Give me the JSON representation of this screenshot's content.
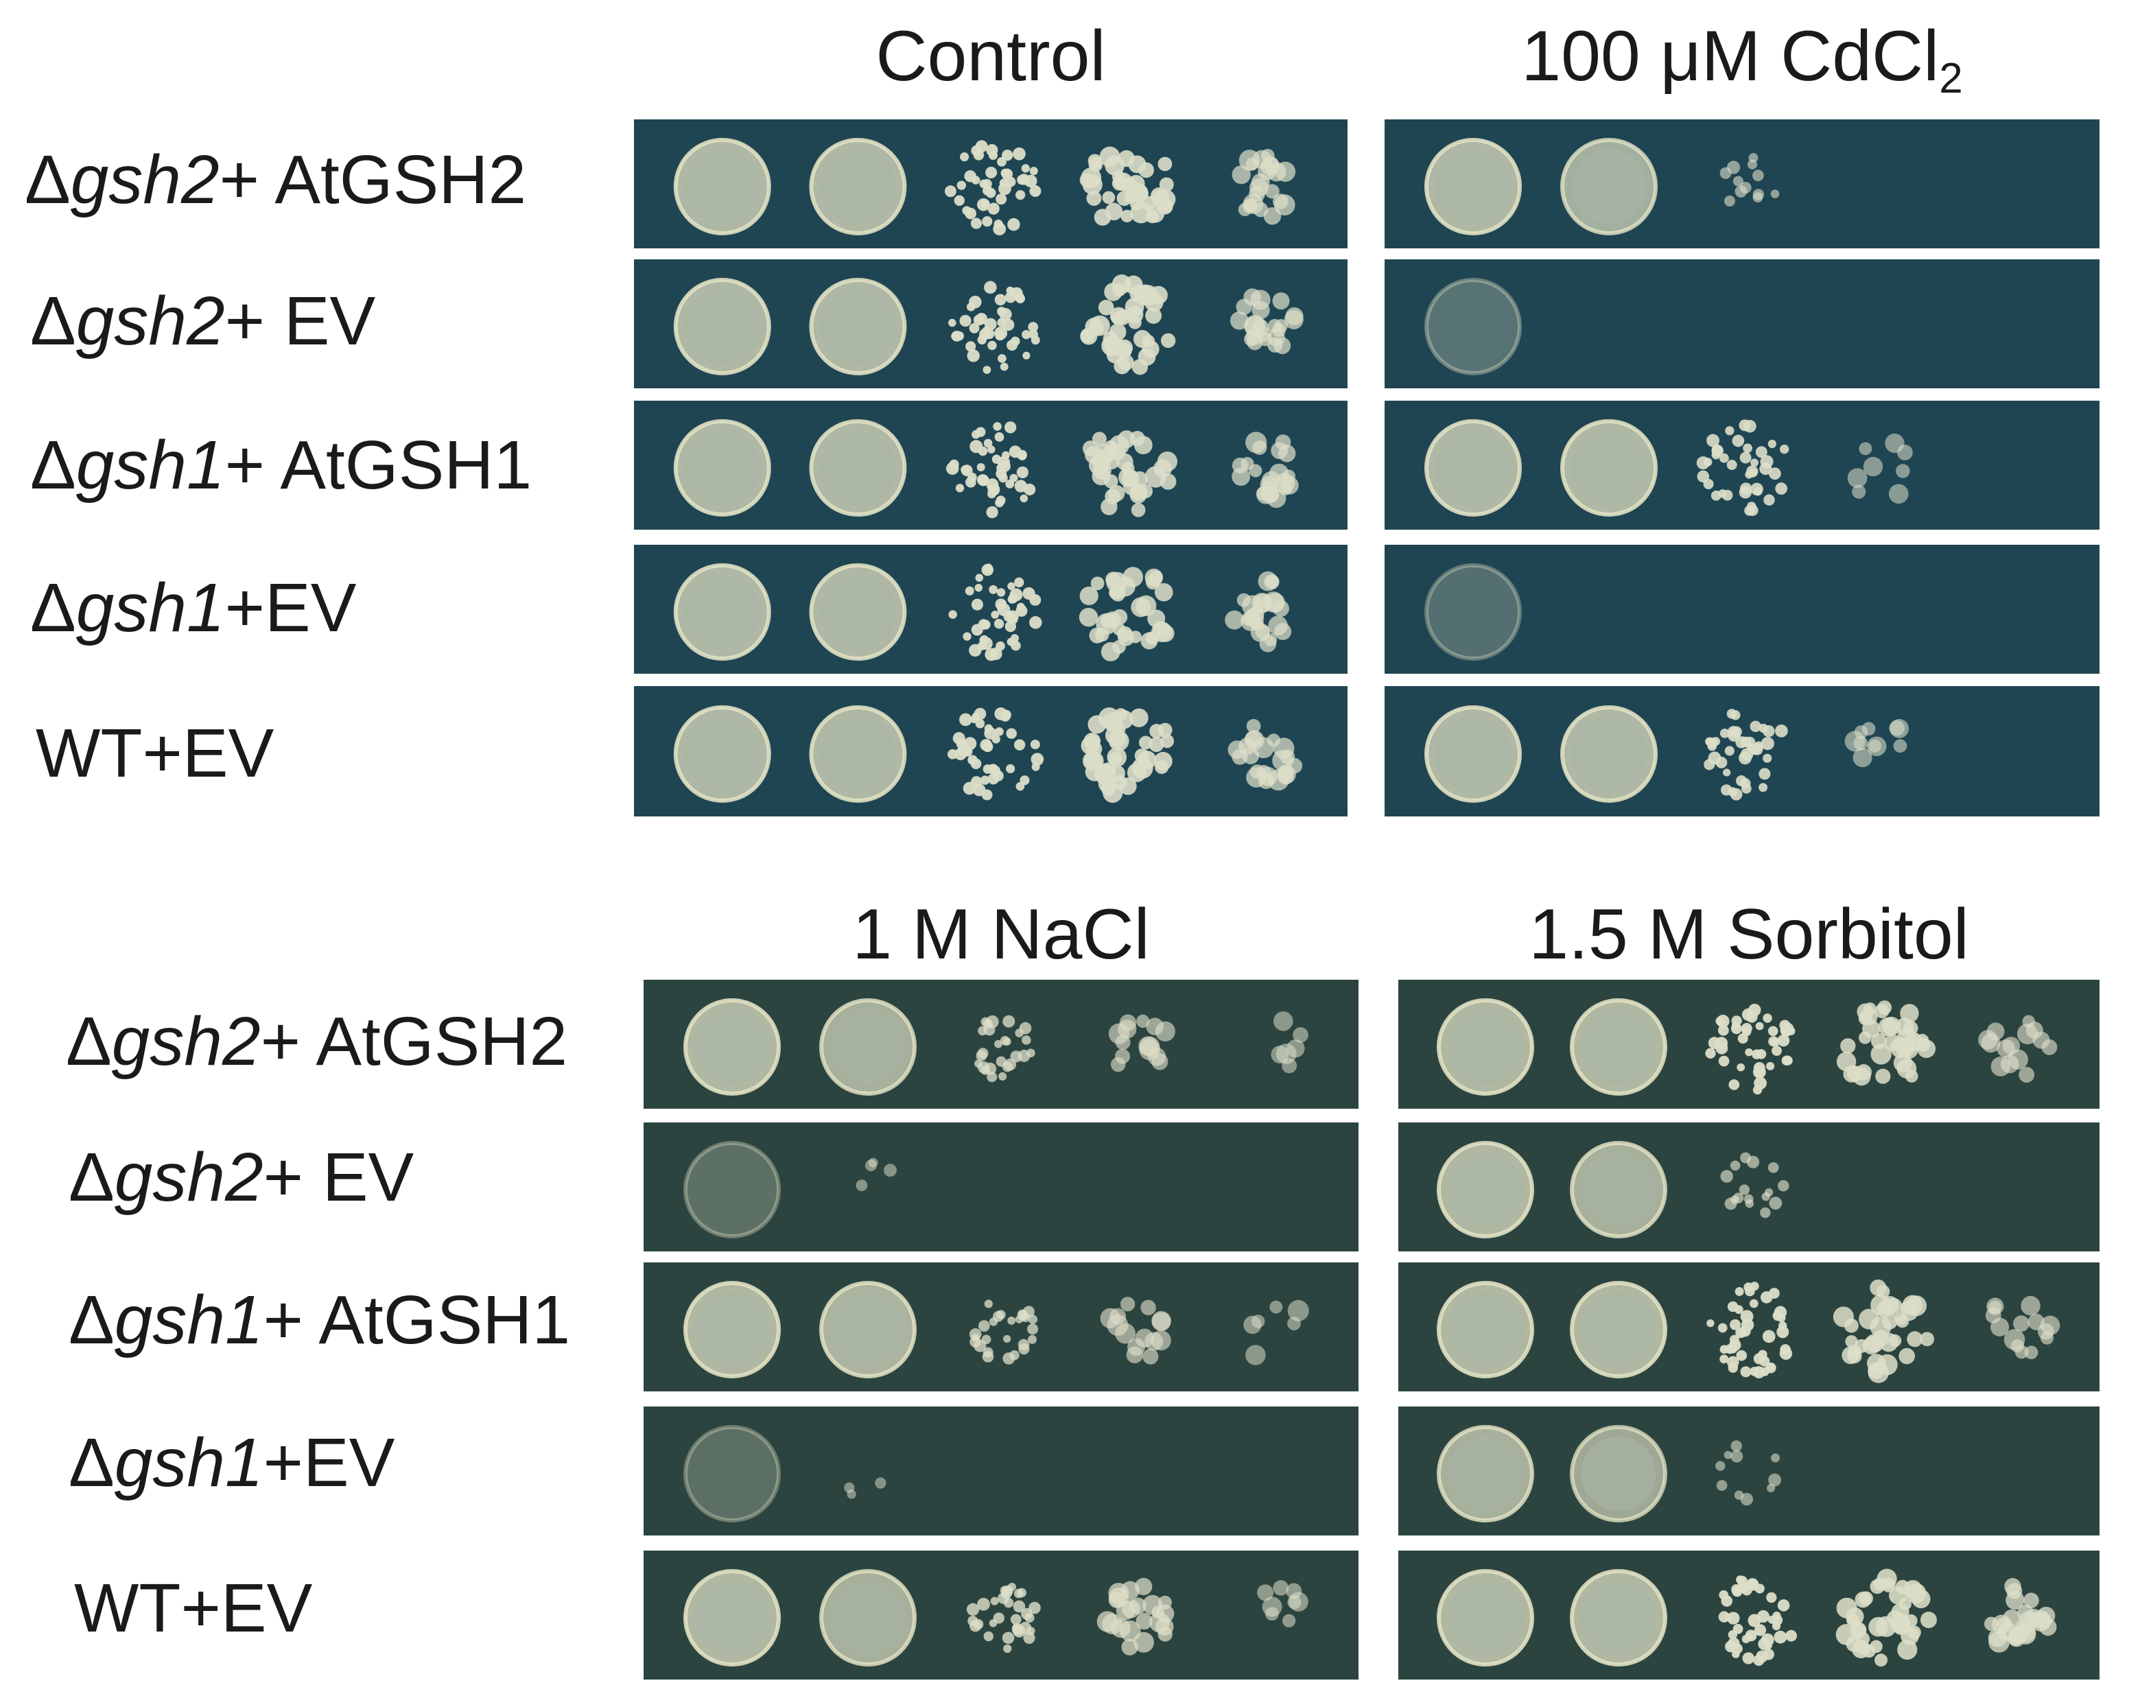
{
  "top_block": {
    "columns": [
      {
        "title": "Control"
      },
      {
        "title": "100 μM CdCl",
        "title_sub": "2"
      }
    ],
    "rows": [
      {
        "prefix": "Δ",
        "gene": "gsh2",
        "suffix": "+ AtGSH2"
      },
      {
        "prefix": "Δ",
        "gene": "gsh2",
        "suffix": "+ EV"
      },
      {
        "prefix": "Δ",
        "gene": "gsh1",
        "suffix": "+ AtGSH1"
      },
      {
        "prefix": "Δ",
        "gene": "gsh1",
        "suffix": "+EV"
      },
      {
        "prefix": "",
        "gene": "",
        "suffix": "WT+EV"
      }
    ],
    "plate_color": "#1f4553",
    "growth": [
      [
        [
          1,
          1,
          1,
          0.9,
          0.5
        ],
        [
          1,
          0.9,
          0.25,
          0,
          0
        ]
      ],
      [
        [
          1,
          1,
          1,
          0.9,
          0.5
        ],
        [
          0.15,
          0,
          0,
          0,
          0
        ]
      ],
      [
        [
          1,
          1,
          1,
          0.8,
          0.5
        ],
        [
          1,
          1,
          0.9,
          0.15,
          0
        ]
      ],
      [
        [
          1,
          1,
          1,
          0.8,
          0.5
        ],
        [
          0.1,
          0,
          0,
          0,
          0
        ]
      ],
      [
        [
          1,
          1,
          1,
          0.9,
          0.5
        ],
        [
          1,
          1,
          0.9,
          0.2,
          0
        ]
      ]
    ]
  },
  "bottom_block": {
    "columns": [
      {
        "title": "1 M NaCl"
      },
      {
        "title": "1.5 M Sorbitol"
      }
    ],
    "rows": [
      {
        "prefix": "Δ",
        "gene": "gsh2",
        "suffix": "+ AtGSH2"
      },
      {
        "prefix": "Δ",
        "gene": "gsh2",
        "suffix": "+ EV"
      },
      {
        "prefix": "Δ",
        "gene": "gsh1",
        "suffix": "+ AtGSH1"
      },
      {
        "prefix": "Δ",
        "gene": "gsh1",
        "suffix": "+EV"
      },
      {
        "prefix": "",
        "gene": "",
        "suffix": "WT+EV"
      }
    ],
    "plate_color": "#2c4440",
    "growth": [
      [
        [
          1,
          0.9,
          0.6,
          0.3,
          0.1
        ],
        [
          1,
          1,
          1,
          0.8,
          0.3
        ]
      ],
      [
        [
          0.12,
          0.05,
          0,
          0,
          0
        ],
        [
          1,
          0.9,
          0.35,
          0,
          0
        ]
      ],
      [
        [
          1,
          0.95,
          0.6,
          0.3,
          0.1
        ],
        [
          1,
          1,
          1,
          0.8,
          0.3
        ]
      ],
      [
        [
          0.1,
          0.03,
          0,
          0,
          0
        ],
        [
          0.9,
          0.8,
          0.2,
          0,
          0
        ]
      ],
      [
        [
          1,
          0.9,
          0.7,
          0.5,
          0.15
        ],
        [
          1,
          1,
          1,
          0.85,
          0.6
        ]
      ]
    ]
  }
}
